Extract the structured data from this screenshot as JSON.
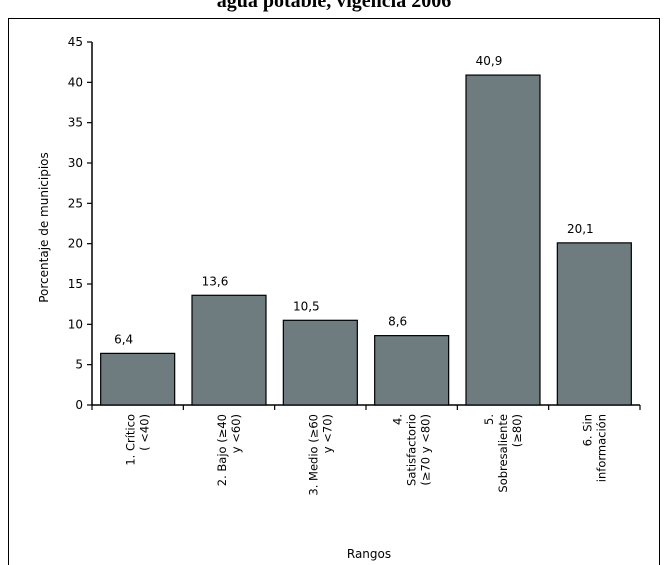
{
  "chart_data": {
    "type": "bar",
    "title": "agua potable, vigencia 2006",
    "xlabel": "Rangos",
    "ylabel": "Porcentaje de municipios",
    "ylim": [
      0,
      45
    ],
    "yticks": [
      0,
      5,
      10,
      15,
      20,
      25,
      30,
      35,
      40,
      45
    ],
    "categories": [
      [
        "1. Crítico",
        "( <40)"
      ],
      [
        "2. Bajo (≥40",
        "y <60)"
      ],
      [
        "3. Medio (≥60",
        "y <70)"
      ],
      [
        "4.",
        "Satisfactorio",
        "(≥70 y <80)"
      ],
      [
        "5.",
        "Sobresaliente",
        "(≥80)"
      ],
      [
        "6. Sin",
        "información"
      ]
    ],
    "values": [
      6.4,
      13.6,
      10.5,
      8.6,
      40.9,
      20.1
    ],
    "data_labels": [
      "6,4",
      "13,6",
      "10,5",
      "8,6",
      "40,9",
      "20,1"
    ],
    "bar_color": "#6e7c80",
    "grid": false,
    "legend": "none"
  }
}
